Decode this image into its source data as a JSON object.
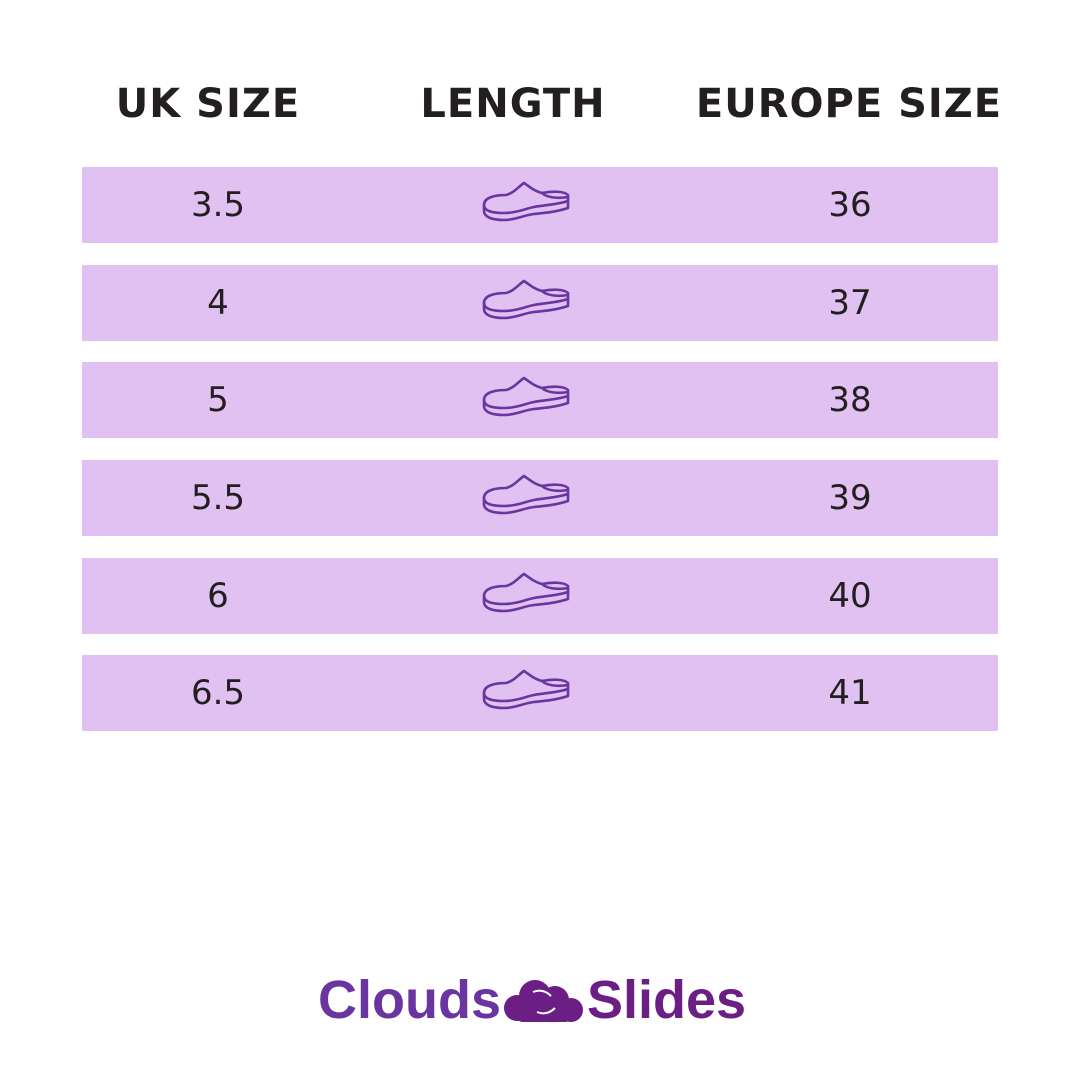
{
  "headers": {
    "uk": "UK SIZE",
    "length": "LENGTH",
    "europe": "EUROPE SIZE"
  },
  "rows": [
    {
      "uk": "3.5",
      "length_icon": "shoe-icon",
      "europe": "36"
    },
    {
      "uk": "4",
      "length_icon": "shoe-icon",
      "europe": "37"
    },
    {
      "uk": "5",
      "length_icon": "shoe-icon",
      "europe": "38"
    },
    {
      "uk": "5.5",
      "length_icon": "shoe-icon",
      "europe": "39"
    },
    {
      "uk": "6",
      "length_icon": "shoe-icon",
      "europe": "40"
    },
    {
      "uk": "6.5",
      "length_icon": "shoe-icon",
      "europe": "41"
    }
  ],
  "brand": {
    "part1": "Clouds",
    "part2": "Slides",
    "icon": "cloud-feet-icon"
  },
  "colors": {
    "row_bg": "#e0c1f2",
    "icon": "#6a35a0",
    "text": "#231f20",
    "brand1": "#6a35a0",
    "brand2": "#6b1f85"
  }
}
